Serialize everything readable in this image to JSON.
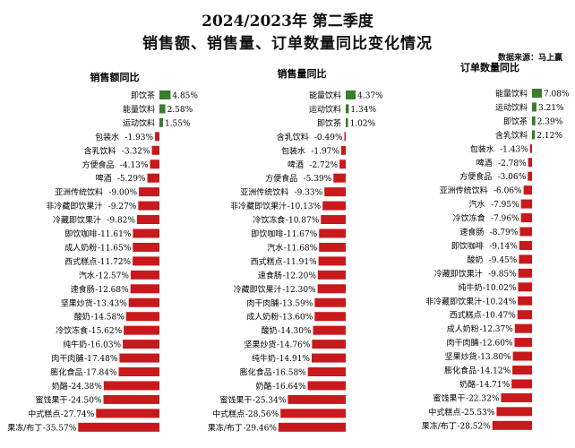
{
  "header": {
    "title": "2024/2023年 第二季度",
    "subtitle": "销售额、销售量、订单数量同比变化情况",
    "source": "数据来源：马上赢"
  },
  "colors": {
    "positive": "#3a7d2a",
    "negative": "#c8191c"
  },
  "chart_data": [
    {
      "type": "bar",
      "orientation": "horizontal",
      "title": "销售额同比",
      "unit": "%",
      "categories": [
        "即饮茶",
        "能量饮料",
        "运动饮料",
        "包装水",
        "含乳饮料",
        "方便食品",
        "啤酒",
        "亚洲传统饮料",
        "非冷藏即饮果汁",
        "冷藏即饮果汁",
        "即饮咖啡",
        "成人奶粉",
        "西式糕点",
        "汽水",
        "速食肠",
        "坚果炒货",
        "酸奶",
        "冷饮冻食",
        "纯牛奶",
        "肉干肉脯",
        "膨化食品",
        "奶酪",
        "蜜饯果干",
        "中式糕点",
        "果冻/布丁"
      ],
      "values": [
        4.85,
        2.58,
        1.55,
        -1.93,
        -3.32,
        -4.13,
        -5.29,
        -9.0,
        -9.27,
        -9.82,
        -11.61,
        -11.65,
        -11.72,
        -12.57,
        -12.68,
        -13.43,
        -14.58,
        -15.62,
        -16.03,
        -17.48,
        -17.84,
        -24.38,
        -24.5,
        -27.74,
        -35.57
      ]
    },
    {
      "type": "bar",
      "orientation": "horizontal",
      "title": "销售量同比",
      "unit": "%",
      "categories": [
        "能量饮料",
        "运动饮料",
        "即饮茶",
        "含乳饮料",
        "包装水",
        "啤酒",
        "方便食品",
        "亚洲传统饮料",
        "非冷藏即饮果汁",
        "冷饮冻食",
        "即饮咖啡",
        "汽水",
        "西式糕点",
        "速食肠",
        "冷藏即饮果汁",
        "肉干肉脯",
        "成人奶粉",
        "酸奶",
        "坚果炒货",
        "纯牛奶",
        "膨化食品",
        "奶酪",
        "蜜饯果干",
        "中式糕点",
        "果冻/布丁"
      ],
      "values": [
        4.37,
        1.34,
        1.02,
        -0.49,
        -1.97,
        -2.72,
        -5.39,
        -9.33,
        -10.13,
        -10.87,
        -11.67,
        -11.68,
        -11.91,
        -12.2,
        -12.3,
        -13.59,
        -13.6,
        -14.3,
        -14.76,
        -14.91,
        -16.58,
        -16.64,
        -25.34,
        -28.56,
        -29.46
      ]
    },
    {
      "type": "bar",
      "orientation": "horizontal",
      "title": "订单数量同比",
      "unit": "%",
      "categories": [
        "能量饮料",
        "运动饮料",
        "即饮茶",
        "含乳饮料",
        "包装水",
        "啤酒",
        "方便食品",
        "亚洲传统饮料",
        "汽水",
        "冷饮冻食",
        "速食肠",
        "即饮咖啡",
        "酸奶",
        "冷藏即饮果汁",
        "纯牛奶",
        "非冷藏即饮果汁",
        "西式糕点",
        "成人奶粉",
        "肉干肉脯",
        "坚果炒货",
        "膨化食品",
        "奶酪",
        "蜜饯果干",
        "中式糕点",
        "果冻/布丁"
      ],
      "values": [
        7.08,
        3.21,
        2.39,
        2.12,
        -1.43,
        -2.78,
        -3.06,
        -6.06,
        -7.95,
        -7.96,
        -8.79,
        -9.14,
        -9.45,
        -9.85,
        -10.02,
        -10.24,
        -10.47,
        -12.37,
        -12.6,
        -13.8,
        -14.12,
        -14.71,
        -22.32,
        -25.53,
        -28.52
      ]
    }
  ]
}
